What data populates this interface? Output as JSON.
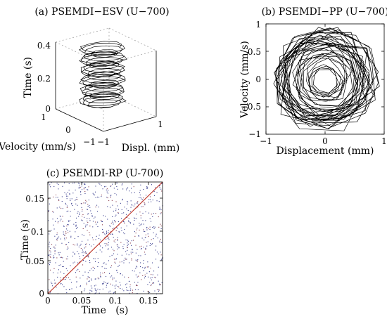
{
  "chart_data": [
    {
      "type": "line",
      "projection": "3d",
      "title": "(a) PSEMDI−ESV (U−700)",
      "xlabel": "Displ. (mm)",
      "ylabel": "Velocity (mm/s)",
      "zlabel": "Time (s)",
      "x_ticks": [
        "−1",
        "1"
      ],
      "y_ticks": [
        "−1",
        "0",
        "1"
      ],
      "z_ticks": [
        "0",
        "0.2",
        "0.4"
      ],
      "xlim": [
        -1,
        1
      ],
      "ylim": [
        -1,
        1
      ],
      "zlim": [
        0,
        0.4
      ],
      "grid": true,
      "color": "#000000"
    },
    {
      "type": "line",
      "title": "(b) PSEMDI−PP (U−700)",
      "xlabel": "Displacement (mm)",
      "ylabel": "Velocity (mm/s)",
      "x_ticks": [
        "−1",
        "0",
        "1"
      ],
      "y_ticks": [
        "1",
        "0.5",
        "0",
        "−0.5",
        "−1"
      ],
      "xlim": [
        -1,
        1
      ],
      "ylim": [
        -1,
        1
      ],
      "grid": false,
      "color": "#000000"
    },
    {
      "type": "scatter",
      "title": "(c) PSEMDI-RP (U-700)",
      "xlabel": "Time   (s)",
      "ylabel": "Time (s)",
      "x_ticks": [
        "0",
        "0.05",
        "0.1",
        "0.15"
      ],
      "y_ticks": [
        "0.15",
        "0.1",
        "0.05",
        "0"
      ],
      "xlim": [
        0,
        0.17
      ],
      "ylim": [
        0,
        0.17
      ],
      "diagonal": true,
      "colors": {
        "dots": "#3a3f8f",
        "dots_alt": "#8a3a4a",
        "diagonal": "#c0392b"
      }
    }
  ]
}
